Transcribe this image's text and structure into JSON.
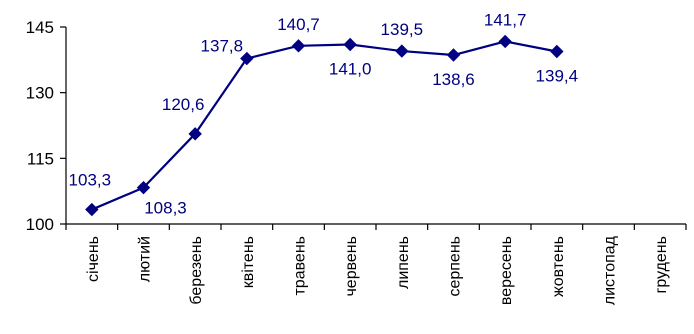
{
  "chart_data": {
    "type": "line",
    "title": "",
    "xlabel": "",
    "ylabel": "",
    "categories": [
      "січень",
      "лютий",
      "березень",
      "квітень",
      "травень",
      "червень",
      "липень",
      "серпень",
      "вересень",
      "жовтень",
      "листопад",
      "грудень"
    ],
    "series": [
      {
        "values": [
          103.3,
          108.3,
          120.6,
          137.8,
          140.7,
          141.0,
          139.5,
          138.6,
          141.7,
          139.4,
          null,
          null
        ],
        "labels": [
          "103,3",
          "108,3",
          "120,6",
          "137,8",
          "140,7",
          "141,0",
          "139,5",
          "138,6",
          "141,7",
          "139,4",
          null,
          null
        ],
        "color": "#000080",
        "marker": "diamond"
      }
    ],
    "ylim": [
      100,
      145
    ],
    "yticks": [
      100,
      115,
      130,
      145
    ],
    "ytick_labels": [
      "100",
      "115",
      "130",
      "145"
    ],
    "grid": false,
    "legend": "none"
  }
}
